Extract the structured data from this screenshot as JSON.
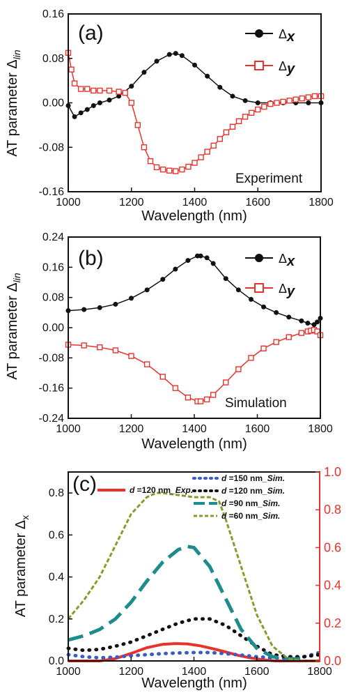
{
  "colors": {
    "black": "#111111",
    "red": "#e8322b",
    "blue": "#3c5cc4",
    "teal": "#1e8c8c",
    "olive": "#8a9a2a"
  },
  "chart_data": [
    {
      "type": "line",
      "panel_label": "(a)",
      "annotation": "Experiment",
      "xlabel": "Wavelength (nm)",
      "ylabel": {
        "main": "AT parameter Δ",
        "sub": "lin"
      },
      "xlim": [
        1000,
        1800
      ],
      "ylim": [
        -0.16,
        0.16
      ],
      "xticks": [
        "1000",
        "1200",
        "1400",
        "1600",
        "1800"
      ],
      "yticks": [
        "-0.16",
        "-0.08",
        "0.00",
        "0.08",
        "0.16"
      ],
      "series": [
        {
          "name": "Δx",
          "label_main": "Δ",
          "label_sub": "x",
          "marker": "circle",
          "x": [
            1000,
            1020,
            1040,
            1060,
            1080,
            1100,
            1130,
            1160,
            1200,
            1240,
            1280,
            1320,
            1340,
            1360,
            1400,
            1440,
            1480,
            1520,
            1560,
            1600,
            1640,
            1680,
            1720,
            1760,
            1800
          ],
          "y": [
            -0.005,
            -0.025,
            -0.018,
            -0.012,
            -0.005,
            0.0,
            0.005,
            0.012,
            0.03,
            0.055,
            0.075,
            0.087,
            0.089,
            0.085,
            0.068,
            0.048,
            0.028,
            0.012,
            0.004,
            0.0,
            0.0,
            0.0,
            0.0,
            0.0,
            0.0
          ]
        },
        {
          "name": "Δy",
          "label_main": "Δ",
          "label_sub": "y",
          "marker": "square",
          "x": [
            1000,
            1010,
            1020,
            1040,
            1060,
            1080,
            1100,
            1130,
            1160,
            1180,
            1200,
            1220,
            1240,
            1260,
            1280,
            1300,
            1320,
            1340,
            1360,
            1380,
            1400,
            1420,
            1440,
            1460,
            1480,
            1500,
            1520,
            1540,
            1560,
            1580,
            1600,
            1620,
            1640,
            1660,
            1680,
            1700,
            1720,
            1740,
            1760,
            1780,
            1800
          ],
          "y": [
            0.09,
            0.06,
            0.035,
            0.025,
            0.025,
            0.022,
            0.022,
            0.022,
            0.02,
            0.018,
            0.0,
            -0.04,
            -0.08,
            -0.105,
            -0.116,
            -0.12,
            -0.122,
            -0.123,
            -0.12,
            -0.115,
            -0.108,
            -0.098,
            -0.088,
            -0.077,
            -0.065,
            -0.053,
            -0.043,
            -0.033,
            -0.025,
            -0.018,
            -0.012,
            -0.007,
            -0.002,
            0.0,
            0.002,
            0.004,
            0.006,
            0.008,
            0.01,
            0.012,
            0.012
          ]
        }
      ]
    },
    {
      "type": "line",
      "panel_label": "(b)",
      "annotation": "Simulation",
      "xlabel": "Wavelength (nm)",
      "ylabel": {
        "main": "AT parameter Δ",
        "sub": "lin"
      },
      "xlim": [
        1000,
        1800
      ],
      "ylim": [
        -0.24,
        0.24
      ],
      "xticks": [
        "1000",
        "1200",
        "1400",
        "1600",
        "1800"
      ],
      "yticks": [
        "-0.24",
        "-0.16",
        "-0.08",
        "0.00",
        "0.08",
        "0.16",
        "0.24"
      ],
      "series": [
        {
          "name": "Δx",
          "label_main": "Δ",
          "label_sub": "x",
          "marker": "circle",
          "x": [
            1000,
            1050,
            1100,
            1150,
            1200,
            1250,
            1300,
            1340,
            1380,
            1410,
            1420,
            1440,
            1460,
            1500,
            1540,
            1580,
            1620,
            1660,
            1700,
            1740,
            1760,
            1780,
            1790,
            1800
          ],
          "y": [
            0.045,
            0.048,
            0.053,
            0.062,
            0.078,
            0.1,
            0.128,
            0.155,
            0.178,
            0.19,
            0.19,
            0.185,
            0.17,
            0.13,
            0.1,
            0.075,
            0.055,
            0.04,
            0.028,
            0.018,
            0.012,
            0.008,
            0.015,
            0.025
          ]
        },
        {
          "name": "Δy",
          "label_main": "Δ",
          "label_sub": "y",
          "marker": "square",
          "x": [
            1000,
            1050,
            1100,
            1150,
            1200,
            1250,
            1300,
            1340,
            1380,
            1410,
            1420,
            1440,
            1460,
            1500,
            1540,
            1580,
            1620,
            1660,
            1700,
            1740,
            1760,
            1770,
            1780,
            1790,
            1800
          ],
          "y": [
            -0.045,
            -0.047,
            -0.052,
            -0.06,
            -0.075,
            -0.097,
            -0.13,
            -0.16,
            -0.185,
            -0.195,
            -0.195,
            -0.19,
            -0.178,
            -0.145,
            -0.11,
            -0.08,
            -0.055,
            -0.038,
            -0.025,
            -0.014,
            -0.01,
            -0.008,
            -0.006,
            -0.01,
            -0.02
          ]
        }
      ]
    },
    {
      "type": "line",
      "panel_label": "(c)",
      "xlabel": "Wavelength (nm)",
      "ylabel": {
        "main": "AT parameter Δ",
        "sub": "x"
      },
      "xlim": [
        1000,
        1800
      ],
      "ylim": [
        0.0,
        0.9
      ],
      "ylim_right": [
        0.0,
        1.0
      ],
      "xticks": [
        "1000",
        "1200",
        "1400",
        "1600",
        "1800"
      ],
      "yticks": [
        "0.0",
        "0.2",
        "0.4",
        "0.6",
        "0.8"
      ],
      "yticks_right": [
        "0.0",
        "0.2",
        "0.4",
        "0.6",
        "0.8",
        "1.0"
      ],
      "series": [
        {
          "name": "d =120 nm_Exp.",
          "label_d": "d",
          "label_rest": " =120 nm",
          "label_tag": "_Exp.",
          "style": "solid",
          "color": "red",
          "axis": "right",
          "x": [
            1000,
            1100,
            1150,
            1200,
            1250,
            1300,
            1340,
            1380,
            1420,
            1460,
            1500,
            1540,
            1580,
            1620,
            1660,
            1700,
            1750,
            1800
          ],
          "y": [
            0.0,
            0.0,
            0.012,
            0.04,
            0.07,
            0.088,
            0.092,
            0.09,
            0.08,
            0.065,
            0.048,
            0.03,
            0.016,
            0.006,
            0.0,
            0.0,
            0.0,
            0.0
          ]
        },
        {
          "name": "d =150 nm_Sim.",
          "label_d": "d",
          "label_rest": " =150 nm",
          "label_tag": "_Sim.",
          "style": "dotted",
          "color": "blue",
          "axis": "left",
          "x": [
            1000,
            1050,
            1100,
            1150,
            1200,
            1250,
            1300,
            1350,
            1400,
            1450,
            1500,
            1550,
            1600,
            1650,
            1700,
            1750,
            1800
          ],
          "y": [
            0.03,
            0.02,
            0.015,
            0.018,
            0.025,
            0.03,
            0.035,
            0.038,
            0.04,
            0.04,
            0.035,
            0.028,
            0.02,
            0.015,
            0.012,
            0.02,
            0.04
          ]
        },
        {
          "name": "d =120 nm_Sim.",
          "label_d": "d",
          "label_rest": " =120 nm",
          "label_tag": "_Sim.",
          "style": "dotted",
          "color": "black",
          "axis": "left",
          "x": [
            1000,
            1050,
            1100,
            1150,
            1200,
            1250,
            1300,
            1350,
            1400,
            1450,
            1500,
            1550,
            1600,
            1650,
            1700,
            1750,
            1800
          ],
          "y": [
            0.06,
            0.05,
            0.055,
            0.07,
            0.09,
            0.12,
            0.15,
            0.18,
            0.2,
            0.2,
            0.17,
            0.12,
            0.07,
            0.03,
            0.02,
            0.02,
            0.03
          ]
        },
        {
          "name": "d =90 nm_Sim.",
          "label_d": "d",
          "label_rest": " =90 nm",
          "label_tag": "_Sim.",
          "style": "longdash",
          "color": "teal",
          "axis": "left",
          "x": [
            1000,
            1050,
            1100,
            1150,
            1200,
            1250,
            1300,
            1350,
            1380,
            1400,
            1450,
            1500,
            1550,
            1600,
            1650,
            1700,
            1750
          ],
          "y": [
            0.1,
            0.12,
            0.15,
            0.2,
            0.28,
            0.38,
            0.47,
            0.53,
            0.545,
            0.54,
            0.45,
            0.3,
            0.15,
            0.06,
            0.02,
            0.01,
            0.01
          ]
        },
        {
          "name": "d =60 nm_Sim.",
          "label_d": "d",
          "label_rest": " =60 nm",
          "label_tag": "_Sim.",
          "style": "shortdash",
          "color": "olive",
          "axis": "left",
          "x": [
            1000,
            1050,
            1100,
            1150,
            1200,
            1250,
            1280,
            1300,
            1350,
            1400,
            1450,
            1480,
            1500,
            1550,
            1600,
            1650,
            1700,
            1750,
            1800
          ],
          "y": [
            0.2,
            0.29,
            0.4,
            0.55,
            0.7,
            0.78,
            0.8,
            0.8,
            0.79,
            0.78,
            0.78,
            0.76,
            0.68,
            0.45,
            0.22,
            0.07,
            0.01,
            0.0,
            0.0
          ]
        }
      ]
    }
  ]
}
